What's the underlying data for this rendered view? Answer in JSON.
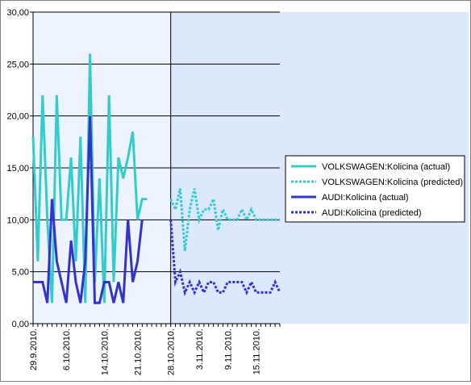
{
  "chart_data": {
    "type": "line",
    "title": "",
    "xlabel": "",
    "ylabel": "",
    "ylim": [
      0,
      30
    ],
    "y_ticks": [
      "0,00",
      "5,00",
      "10,00",
      "15,00",
      "20,00",
      "25,00",
      "30,00"
    ],
    "x_ticks": [
      "29.9.2010.",
      "6.10.2010.",
      "14.10.2010.",
      "21.10.2010.",
      "28.10.2010.",
      "3.11.2010.",
      "9.11.2010.",
      "15.11.2010."
    ],
    "x_tick_index": [
      0,
      7,
      15,
      22,
      29,
      35,
      41,
      47
    ],
    "n_points": 53,
    "split_index": 29,
    "grid": "horizontal",
    "legend_position": "right",
    "series": [
      {
        "name": "VOLKSWAGEN:Kolicina (actual)",
        "color": "#33CCCC",
        "style": "solid",
        "start": 0,
        "values": [
          18,
          6,
          22,
          10,
          2,
          22,
          10,
          10,
          16,
          6,
          18,
          2,
          26,
          4,
          14,
          2,
          22,
          4,
          16,
          14,
          16,
          18.5,
          10,
          12,
          12
        ]
      },
      {
        "name": "VOLKSWAGEN:Kolicina (predicted)",
        "color": "#33CCCC",
        "style": "dotted",
        "start": 29,
        "values": [
          12,
          11,
          13,
          7,
          11,
          13,
          10,
          11,
          11,
          12,
          9,
          11,
          10,
          10,
          10,
          11,
          10,
          11,
          10,
          10,
          10,
          10,
          10,
          10
        ]
      },
      {
        "name": "AUDI:Kolicina (actual)",
        "color": "#3333CC",
        "style": "solid",
        "start": 0,
        "values": [
          4,
          4,
          4,
          2,
          12,
          6,
          4,
          2,
          8,
          4,
          2,
          6,
          20,
          2,
          2,
          4,
          4,
          2,
          4,
          2,
          10,
          4,
          6,
          10
        ]
      },
      {
        "name": "AUDI:Kolicina (predicted)",
        "color": "#3333CC",
        "style": "dotted",
        "start": 29,
        "values": [
          10,
          4,
          5,
          3,
          4,
          3,
          4,
          3,
          4,
          4,
          3,
          3,
          4,
          4,
          4,
          4,
          3,
          4,
          3,
          3,
          3,
          3,
          4,
          3
        ]
      }
    ]
  }
}
